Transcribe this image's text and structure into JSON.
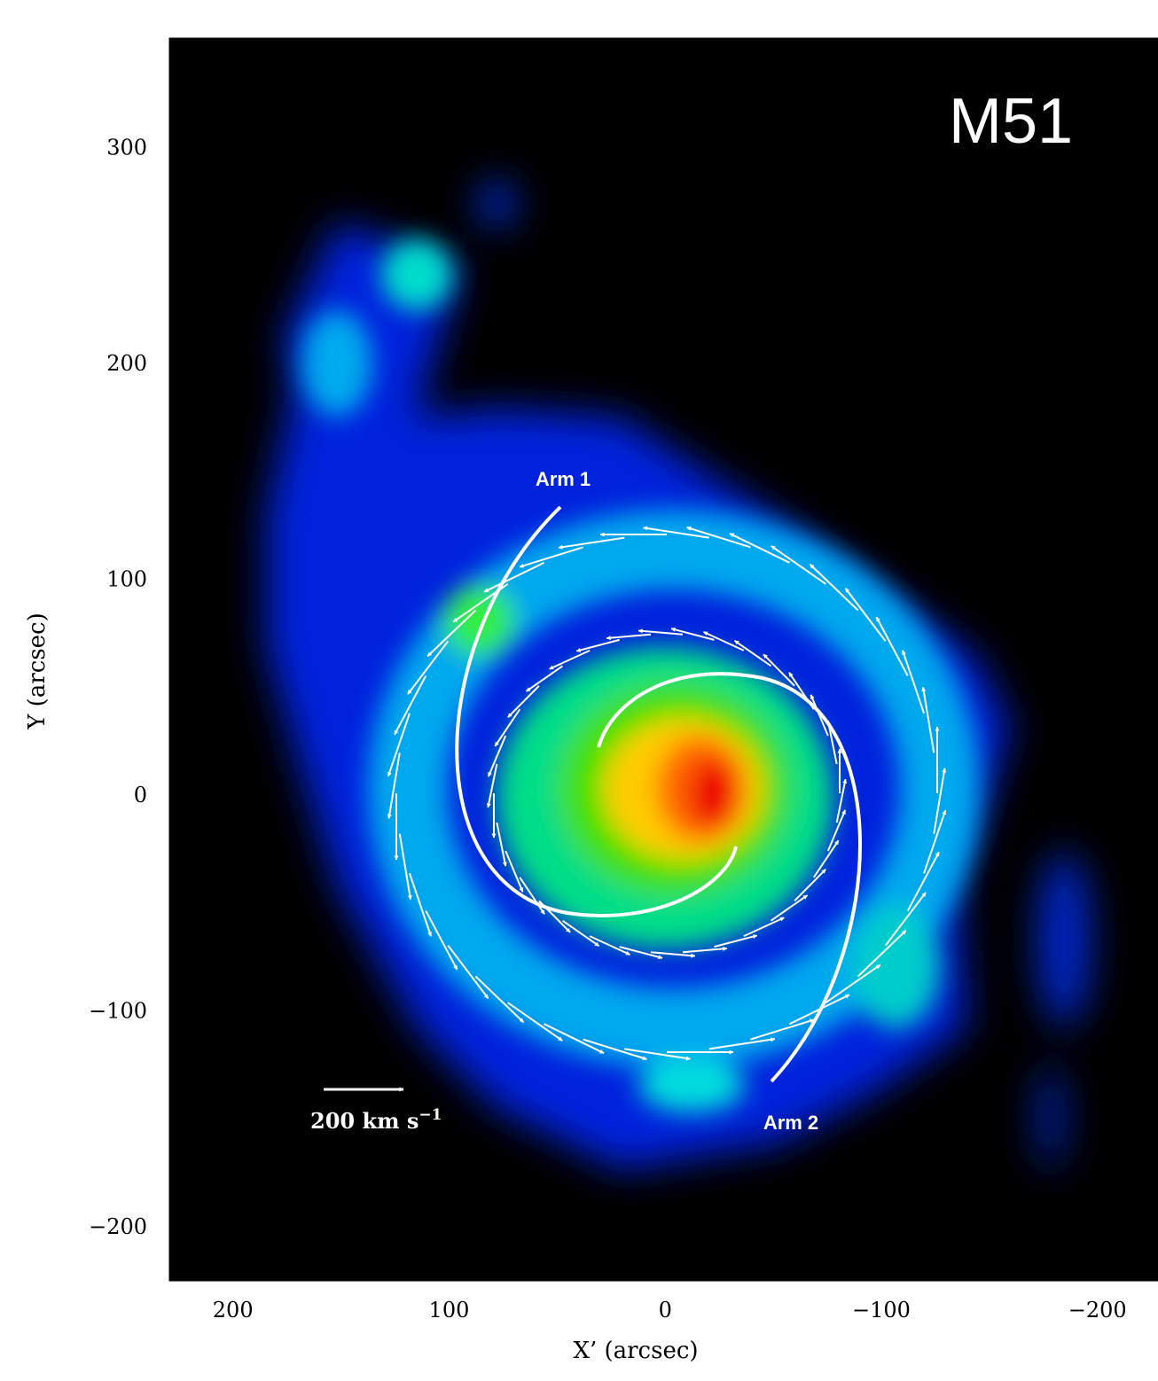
{
  "chart_data": {
    "type": "image",
    "title": "M51",
    "xlabel": "X’ (arcsec)",
    "ylabel": "Y (arcsec)",
    "xlim": [
      229,
      -228
    ],
    "ylim": [
      -225,
      350
    ],
    "xticks": [
      200,
      100,
      0,
      {
        "value": -100,
        "label": "−100"
      },
      {
        "value": -200,
        "label": "−200"
      }
    ],
    "yticks": [
      {
        "value": -200,
        "label": "−200"
      },
      {
        "value": -100,
        "label": "−100"
      },
      0,
      100,
      200,
      300
    ],
    "annotations": [
      "Arm 1",
      "Arm 2"
    ],
    "scale_label": "200 km s",
    "scale_label_sup": "−1"
  }
}
